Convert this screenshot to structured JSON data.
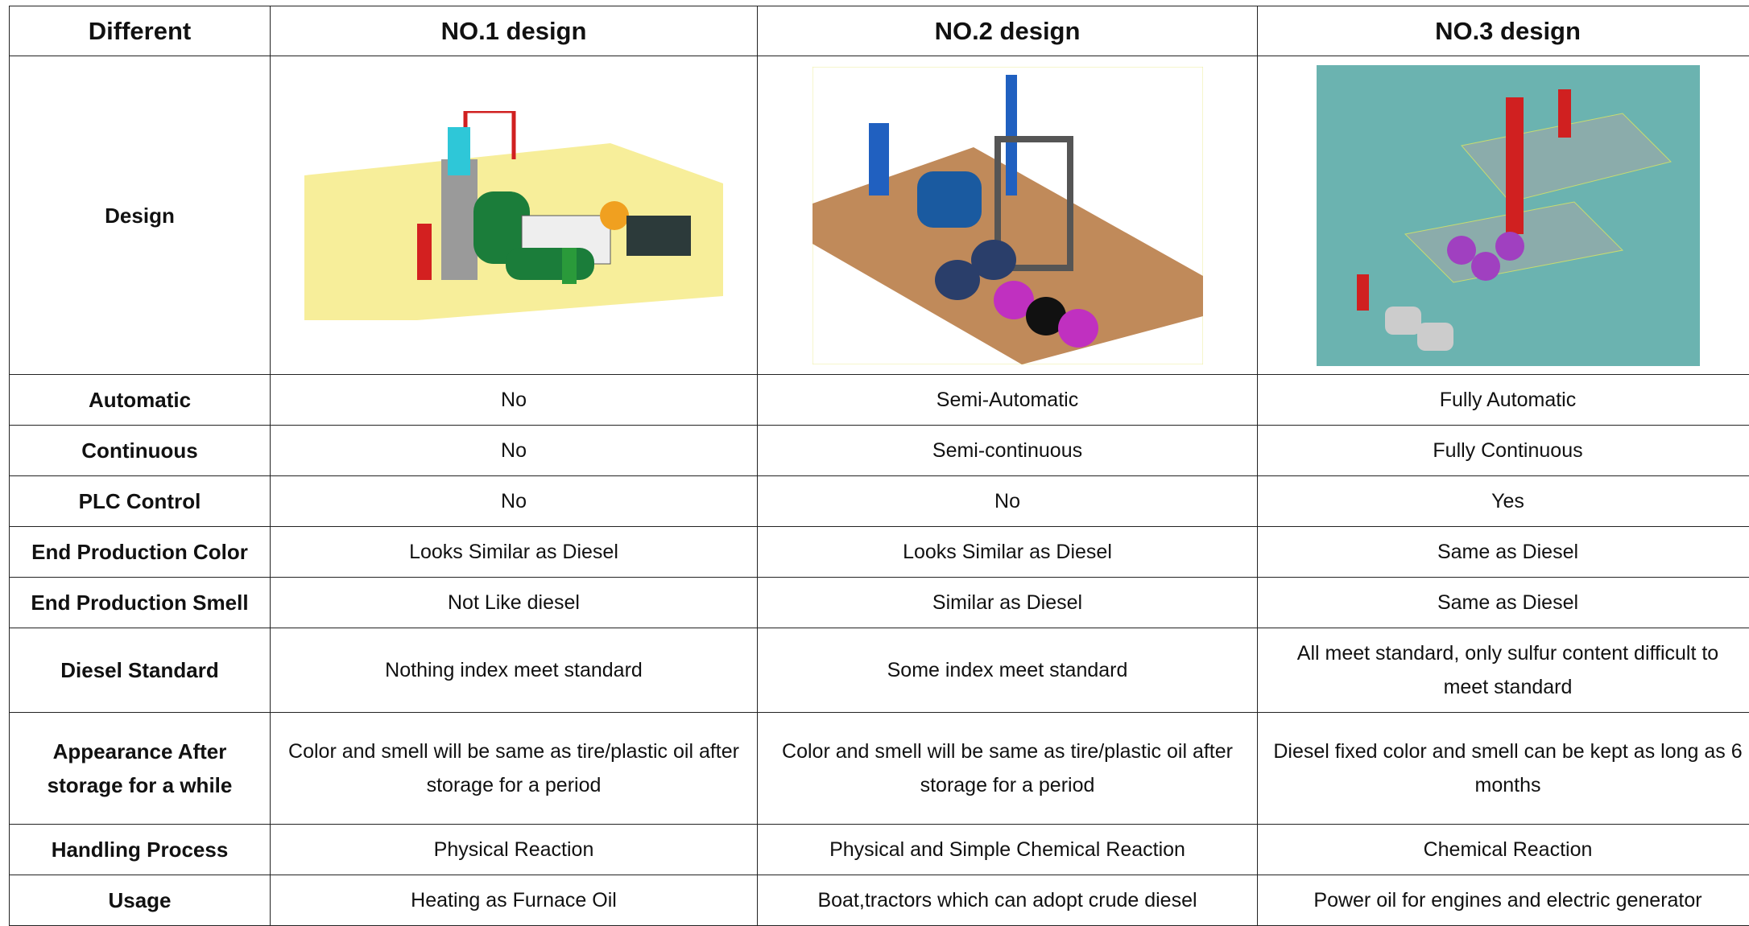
{
  "table": {
    "header": [
      "Different",
      "NO.1 design",
      "NO.2 design",
      "NO.3 design"
    ],
    "design_label": "Design",
    "rows": [
      [
        "Automatic",
        "No",
        "Semi-Automatic",
        "Fully Automatic"
      ],
      [
        "Continuous",
        "No",
        "Semi-continuous",
        "Fully Continuous"
      ],
      [
        "PLC Control",
        "No",
        "No",
        "Yes"
      ],
      [
        "End Production Color",
        "Looks Similar as Diesel",
        "Looks Similar as Diesel",
        "Same as Diesel"
      ],
      [
        "End Production Smell",
        "Not Like diesel",
        "Similar as Diesel",
        "Same as Diesel"
      ],
      [
        "Diesel Standard",
        "Nothing index meet standard",
        "Some index meet standard",
        "All meet standard, only sulfur content difficult to meet standard"
      ],
      [
        "Appearance After storage for a while",
        "Color and smell will be same as tire/plastic oil after storage for a period",
        "Color and smell will be same as tire/plastic oil after storage for a period",
        "Diesel fixed color and smell can be kept as long as 6 months"
      ],
      [
        "Handling Process",
        "Physical Reaction",
        "Physical and Simple Chemical Reaction",
        "Chemical Reaction"
      ],
      [
        "Usage",
        "Heating as Furnace Oil",
        "Boat,tractors which can adopt crude diesel",
        "Power oil for engines and electric generator"
      ]
    ]
  }
}
